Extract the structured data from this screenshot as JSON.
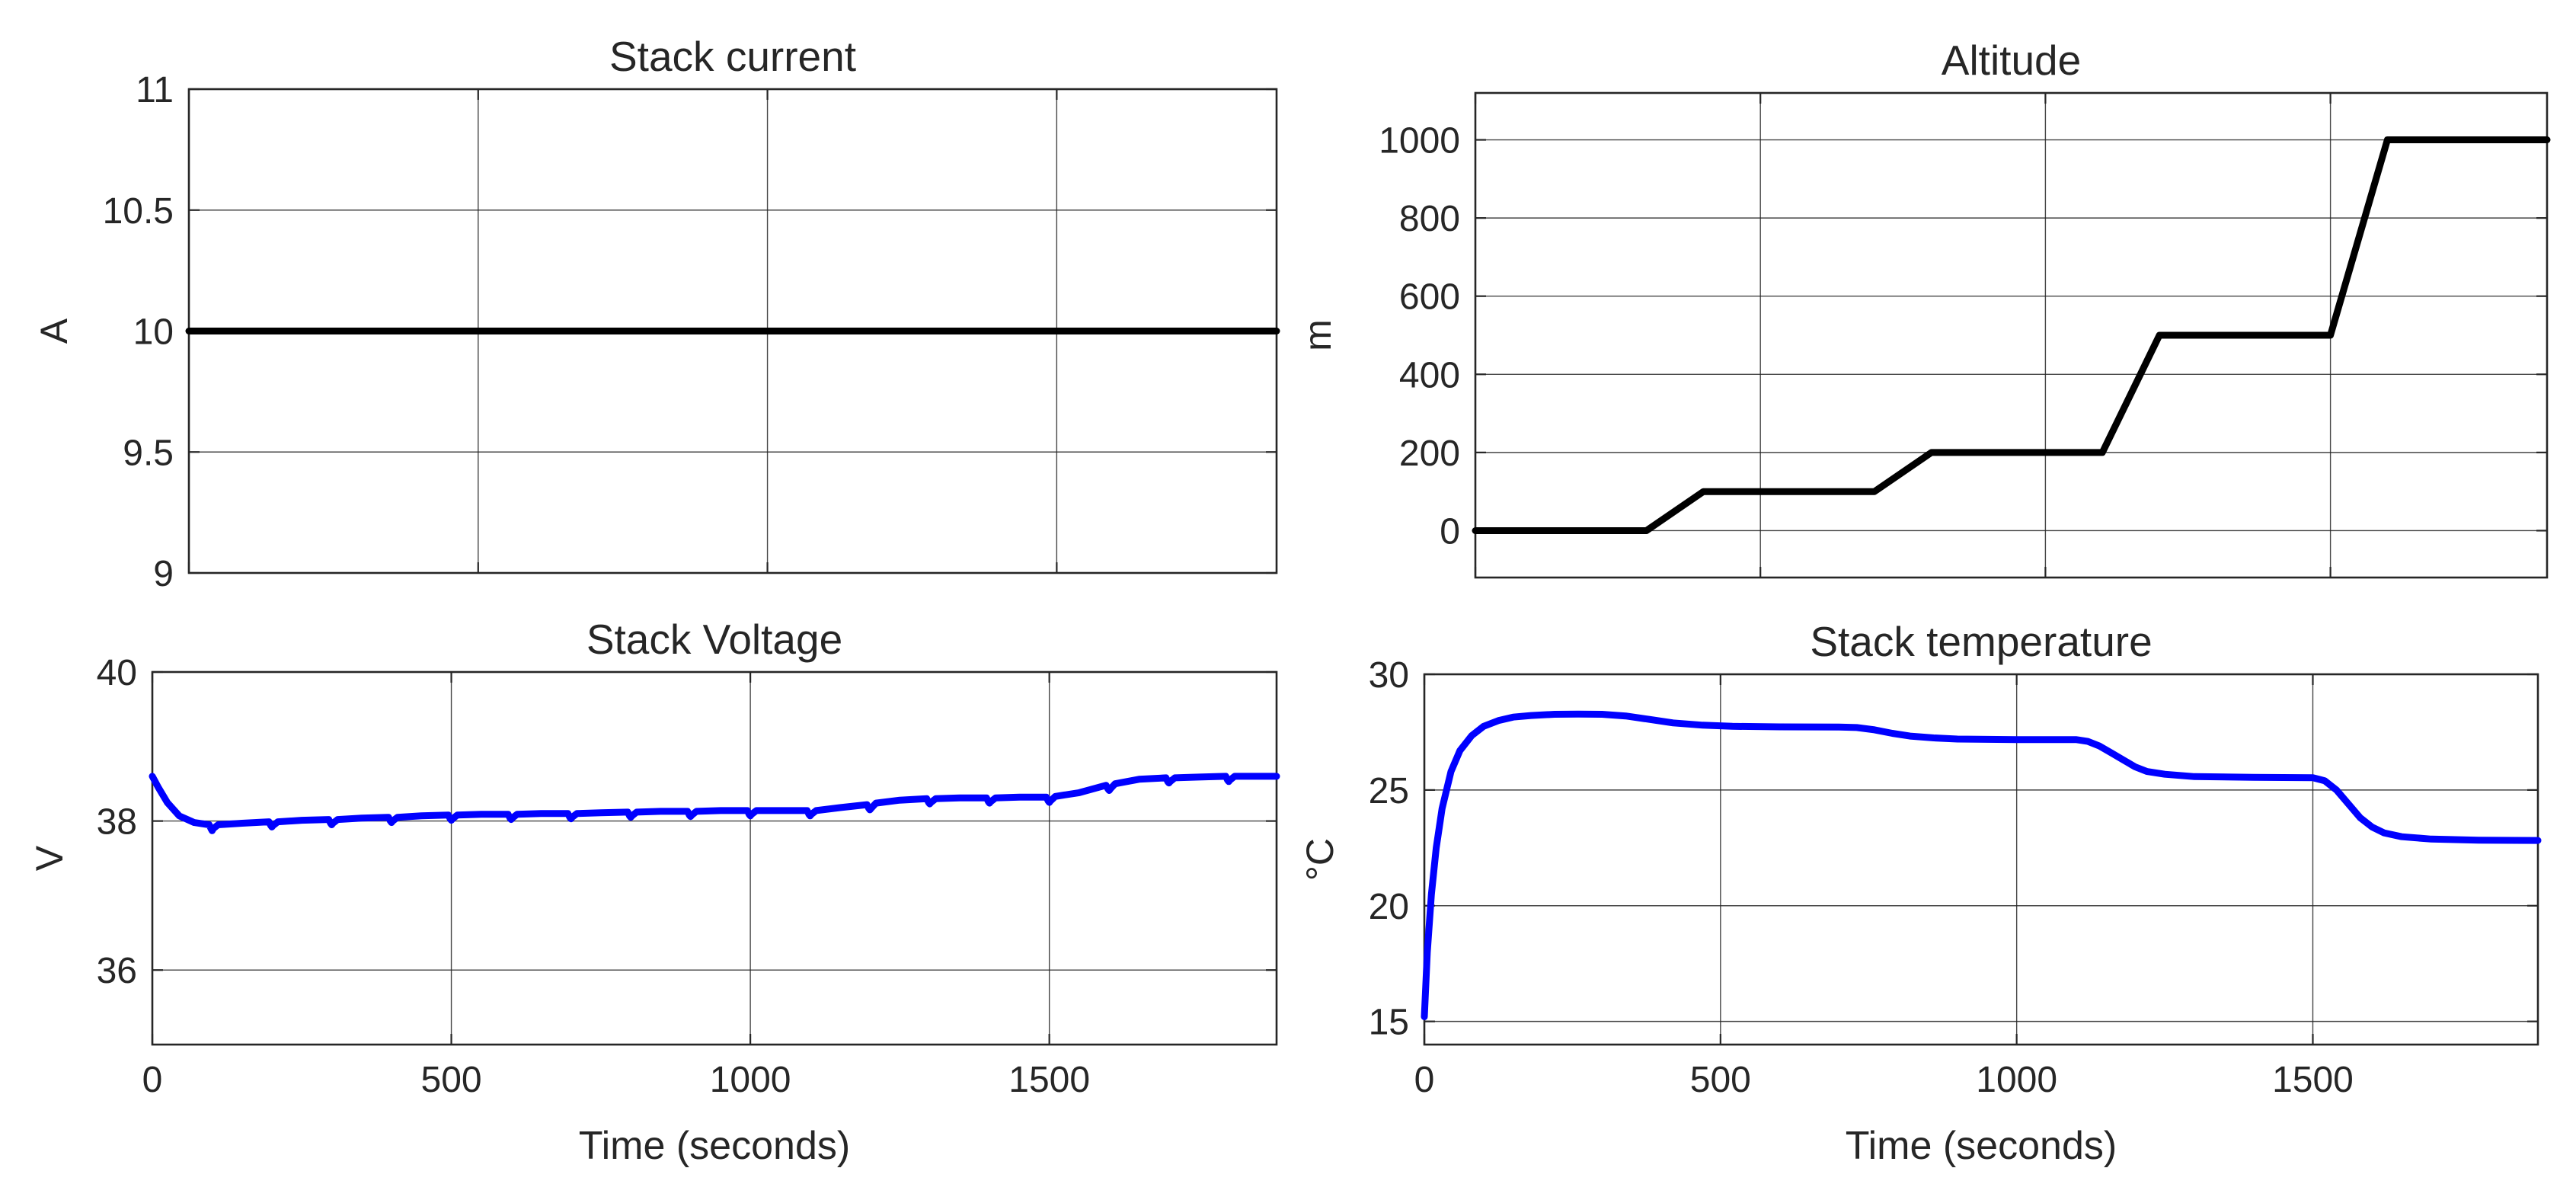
{
  "figure": {
    "title": "",
    "colors": {
      "axes": "#262626",
      "grid": "#262626",
      "black_series": "#000000",
      "blue_series": "#0000ff"
    }
  },
  "chart_data": [
    {
      "type": "line",
      "title": "Stack current",
      "xlabel": "",
      "ylabel": "A",
      "xlim": [
        0,
        1880
      ],
      "ylim": [
        9,
        11
      ],
      "xticks": [
        0,
        500,
        1000,
        1500
      ],
      "xtick_labels": [],
      "yticks": [
        9,
        9.5,
        10,
        10.5,
        11
      ],
      "ytick_labels": [
        "9",
        "9.5",
        "10",
        "10.5",
        "11"
      ],
      "grid": true,
      "series": [
        {
          "name": "",
          "color": "#000000",
          "x": [
            0,
            1880
          ],
          "y": [
            10,
            10
          ]
        }
      ]
    },
    {
      "type": "line",
      "title": "Altitude",
      "xlabel": "",
      "ylabel": "m",
      "xlim": [
        0,
        1880
      ],
      "ylim": [
        -120,
        1120
      ],
      "xticks": [
        0,
        500,
        1000,
        1500
      ],
      "xtick_labels": [],
      "yticks": [
        0,
        200,
        400,
        600,
        800,
        1000
      ],
      "ytick_labels": [
        "0",
        "200",
        "400",
        "600",
        "800",
        "1000"
      ],
      "grid": true,
      "series": [
        {
          "name": "",
          "color": "#000000",
          "x": [
            0,
            300,
            400,
            700,
            800,
            1100,
            1200,
            1500,
            1600,
            1880
          ],
          "y": [
            0,
            0,
            100,
            100,
            200,
            200,
            500,
            500,
            1000,
            1000
          ]
        }
      ]
    },
    {
      "type": "line",
      "title": "Stack Voltage",
      "xlabel": "Time (seconds)",
      "ylabel": "V",
      "xlim": [
        0,
        1880
      ],
      "ylim": [
        35,
        40
      ],
      "xticks": [
        0,
        500,
        1000,
        1500
      ],
      "xtick_labels": [
        "0",
        "500",
        "1000",
        "1500"
      ],
      "yticks": [
        36,
        38,
        40
      ],
      "ytick_labels": [
        "36",
        "38",
        "40"
      ],
      "grid": true,
      "series": [
        {
          "name": "",
          "color": "#0000ff",
          "x": [
            0,
            10,
            25,
            45,
            70,
            95,
            98,
            100,
            102,
            110,
            150,
            195,
            198,
            200,
            202,
            210,
            250,
            295,
            298,
            300,
            302,
            310,
            350,
            395,
            398,
            400,
            402,
            410,
            450,
            495,
            498,
            500,
            502,
            510,
            550,
            595,
            598,
            600,
            602,
            610,
            650,
            695,
            698,
            700,
            702,
            710,
            750,
            795,
            798,
            800,
            802,
            810,
            850,
            895,
            898,
            900,
            902,
            910,
            950,
            995,
            998,
            1000,
            1002,
            1010,
            1050,
            1095,
            1098,
            1100,
            1102,
            1110,
            1150,
            1195,
            1198,
            1200,
            1202,
            1210,
            1250,
            1295,
            1298,
            1300,
            1302,
            1310,
            1350,
            1395,
            1398,
            1400,
            1402,
            1410,
            1450,
            1495,
            1498,
            1500,
            1502,
            1510,
            1550,
            1595,
            1598,
            1600,
            1602,
            1610,
            1650,
            1695,
            1698,
            1700,
            1702,
            1710,
            1750,
            1795,
            1798,
            1800,
            1802,
            1810,
            1850,
            1880
          ],
          "y": [
            38.6,
            38.45,
            38.25,
            38.07,
            37.98,
            37.95,
            37.9,
            37.87,
            37.9,
            37.95,
            37.97,
            37.99,
            37.94,
            37.92,
            37.94,
            37.99,
            38.01,
            38.02,
            37.97,
            37.95,
            37.97,
            38.02,
            38.04,
            38.05,
            38.0,
            37.98,
            38.0,
            38.05,
            38.07,
            38.08,
            38.03,
            38.01,
            38.03,
            38.08,
            38.09,
            38.09,
            38.04,
            38.02,
            38.04,
            38.09,
            38.1,
            38.1,
            38.05,
            38.03,
            38.05,
            38.1,
            38.11,
            38.12,
            38.07,
            38.05,
            38.07,
            38.12,
            38.13,
            38.13,
            38.08,
            38.06,
            38.08,
            38.13,
            38.14,
            38.14,
            38.09,
            38.07,
            38.09,
            38.14,
            38.14,
            38.14,
            38.09,
            38.07,
            38.09,
            38.14,
            38.18,
            38.22,
            38.17,
            38.15,
            38.17,
            38.24,
            38.28,
            38.3,
            38.25,
            38.23,
            38.25,
            38.3,
            38.31,
            38.31,
            38.26,
            38.24,
            38.26,
            38.31,
            38.32,
            38.32,
            38.27,
            38.25,
            38.27,
            38.33,
            38.38,
            38.48,
            38.43,
            38.41,
            38.43,
            38.5,
            38.56,
            38.58,
            38.53,
            38.51,
            38.53,
            38.58,
            38.59,
            38.6,
            38.55,
            38.53,
            38.55,
            38.6,
            38.6,
            38.6
          ]
        }
      ]
    },
    {
      "type": "line",
      "title": "Stack temperature",
      "xlabel": "Time (seconds)",
      "ylabel": "°C",
      "xlim": [
        0,
        1880
      ],
      "ylim": [
        14,
        30
      ],
      "xticks": [
        0,
        500,
        1000,
        1500
      ],
      "xtick_labels": [
        "0",
        "500",
        "1000",
        "1500"
      ],
      "yticks": [
        15,
        20,
        25,
        30
      ],
      "ytick_labels": [
        "15",
        "20",
        "25",
        "30"
      ],
      "grid": true,
      "series": [
        {
          "name": "",
          "color": "#0000ff",
          "x": [
            0,
            5,
            12,
            20,
            30,
            45,
            60,
            80,
            100,
            125,
            150,
            180,
            220,
            260,
            300,
            340,
            380,
            420,
            470,
            520,
            600,
            700,
            730,
            760,
            790,
            820,
            860,
            900,
            1000,
            1100,
            1120,
            1140,
            1160,
            1180,
            1200,
            1220,
            1250,
            1300,
            1400,
            1500,
            1520,
            1540,
            1560,
            1580,
            1600,
            1620,
            1650,
            1700,
            1780,
            1880
          ],
          "y": [
            15.2,
            18.0,
            20.5,
            22.5,
            24.2,
            25.8,
            26.7,
            27.35,
            27.75,
            28.0,
            28.15,
            28.22,
            28.27,
            28.28,
            28.27,
            28.2,
            28.05,
            27.9,
            27.8,
            27.75,
            27.73,
            27.72,
            27.7,
            27.6,
            27.45,
            27.33,
            27.25,
            27.2,
            27.18,
            27.18,
            27.1,
            26.9,
            26.6,
            26.3,
            26.0,
            25.8,
            25.68,
            25.58,
            25.55,
            25.53,
            25.4,
            25.0,
            24.4,
            23.8,
            23.4,
            23.15,
            22.98,
            22.88,
            22.83,
            22.82
          ]
        }
      ]
    }
  ]
}
